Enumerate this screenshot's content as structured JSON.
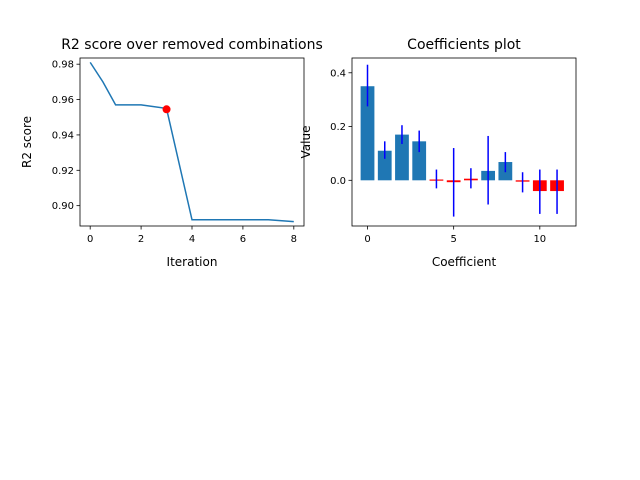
{
  "colors": {
    "line": "#1f77b4",
    "bar_positive": "#1f77b4",
    "bar_negative": "#ff0000",
    "marker": "#ff0000",
    "error_bar": "#0000ff",
    "axes": "#000000"
  },
  "chart_data": [
    {
      "type": "line",
      "title": "R2 score over removed combinations",
      "xlabel": "Iteration",
      "ylabel": "R2 score",
      "xlim": [
        -0.4,
        8.4
      ],
      "ylim": [
        0.8885,
        0.9835
      ],
      "xticks": [
        0,
        2,
        4,
        6,
        8
      ],
      "xtick_labels": [
        "0",
        "2",
        "4",
        "6",
        "8"
      ],
      "yticks": [
        0.9,
        0.92,
        0.94,
        0.96,
        0.98
      ],
      "ytick_labels": [
        "0.90",
        "0.92",
        "0.94",
        "0.96",
        "0.98"
      ],
      "grid": false,
      "series": [
        {
          "x": [
            0,
            0.5,
            1,
            2,
            3,
            4,
            5,
            6,
            7,
            8
          ],
          "y": [
            0.981,
            0.97,
            0.957,
            0.957,
            0.955,
            0.892,
            0.892,
            0.892,
            0.892,
            0.891
          ]
        }
      ],
      "highlight_point": {
        "x": 3,
        "y": 0.9545
      }
    },
    {
      "type": "bar",
      "title": "Coefficients plot",
      "xlabel": "Coefficient",
      "ylabel": "Value",
      "xlim": [
        -0.9,
        12.1
      ],
      "ylim": [
        -0.17,
        0.455
      ],
      "xticks": [
        0,
        5,
        10
      ],
      "xtick_labels": [
        "0",
        "5",
        "10"
      ],
      "yticks": [
        0.0,
        0.2,
        0.4
      ],
      "ytick_labels": [
        "0.0",
        "0.2",
        "0.4"
      ],
      "grid": false,
      "categories": [
        0,
        1,
        2,
        3,
        4,
        5,
        6,
        7,
        8,
        9,
        10,
        11
      ],
      "values": [
        0.35,
        0.11,
        0.17,
        0.145,
        0.003,
        -0.007,
        0.006,
        0.035,
        0.068,
        -0.005,
        -0.04,
        -0.04
      ],
      "error_low": [
        0.275,
        0.08,
        0.135,
        0.105,
        -0.03,
        -0.135,
        -0.03,
        -0.09,
        0.03,
        -0.045,
        -0.125,
        -0.125
      ],
      "error_high": [
        0.43,
        0.145,
        0.205,
        0.185,
        0.04,
        0.12,
        0.045,
        0.165,
        0.105,
        0.03,
        0.04,
        0.04
      ]
    }
  ]
}
